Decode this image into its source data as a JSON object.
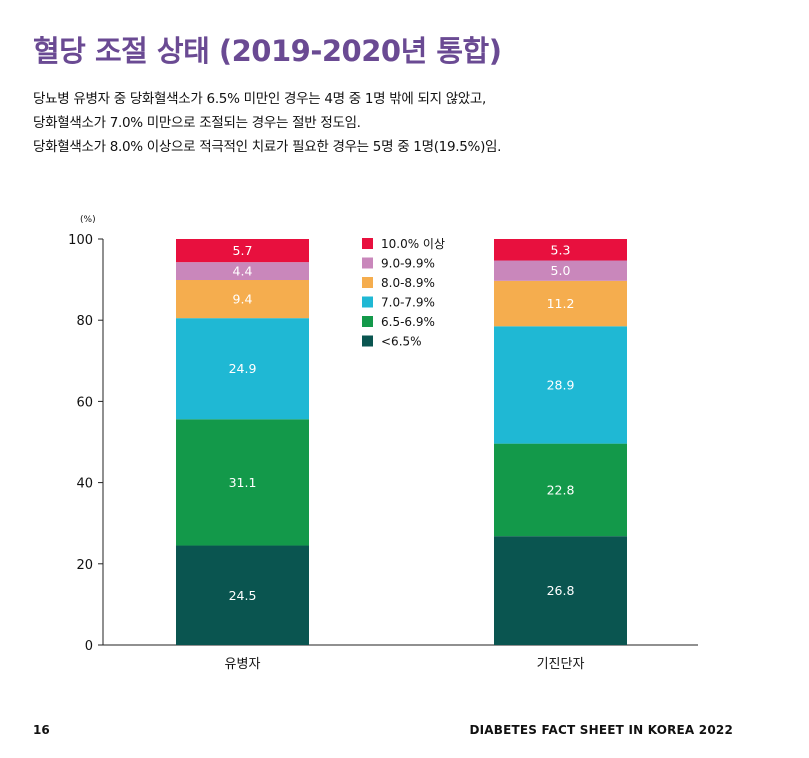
{
  "header": {
    "title": "혈당 조절 상태 (2019-2020년 통합)",
    "description": [
      "당뇨병 유병자 중 당화혈색소가 6.5% 미만인 경우는 4명 중 1명 밖에 되지 않았고,",
      "당화혈색소가 7.0% 미만으로 조절되는 경우는 절반 정도임.",
      "당화혈색소가 8.0% 이상으로 적극적인 치료가 필요한 경우는 5명 중 1명(19.5%)임."
    ]
  },
  "chart_data": {
    "type": "bar",
    "stacked": true,
    "ylabel": "(%)",
    "ylim": [
      0,
      100
    ],
    "yticks": [
      0,
      20,
      40,
      60,
      80,
      100
    ],
    "grid": false,
    "legend_position": "top-center",
    "categories": [
      "유병자",
      "기진단자"
    ],
    "series": [
      {
        "name": "<6.5%",
        "color": "#0a5550",
        "values": [
          24.5,
          26.8
        ],
        "labels": [
          "24.5",
          "26.8"
        ]
      },
      {
        "name": "6.5-6.9%",
        "color": "#13994a",
        "values": [
          31.1,
          22.8
        ],
        "labels": [
          "31.1",
          "22.8"
        ]
      },
      {
        "name": "7.0-7.9%",
        "color": "#1fb8d4",
        "values": [
          24.9,
          28.9
        ],
        "labels": [
          "24.9",
          "28.9"
        ]
      },
      {
        "name": "8.0-8.9%",
        "color": "#f5ad4e",
        "values": [
          9.4,
          11.2
        ],
        "labels": [
          "9.4",
          "11.2"
        ]
      },
      {
        "name": "9.0-9.9%",
        "color": "#c987bb",
        "values": [
          4.4,
          5.0
        ],
        "labels": [
          "4.4",
          "5.0"
        ]
      },
      {
        "name": "10.0% 이상",
        "color": "#e8103e",
        "values": [
          5.7,
          5.3
        ],
        "labels": [
          "5.7",
          "5.3"
        ]
      }
    ]
  },
  "footer": {
    "page_number": "16",
    "brand": "DIABETES FACT SHEET IN KOREA 2022"
  }
}
